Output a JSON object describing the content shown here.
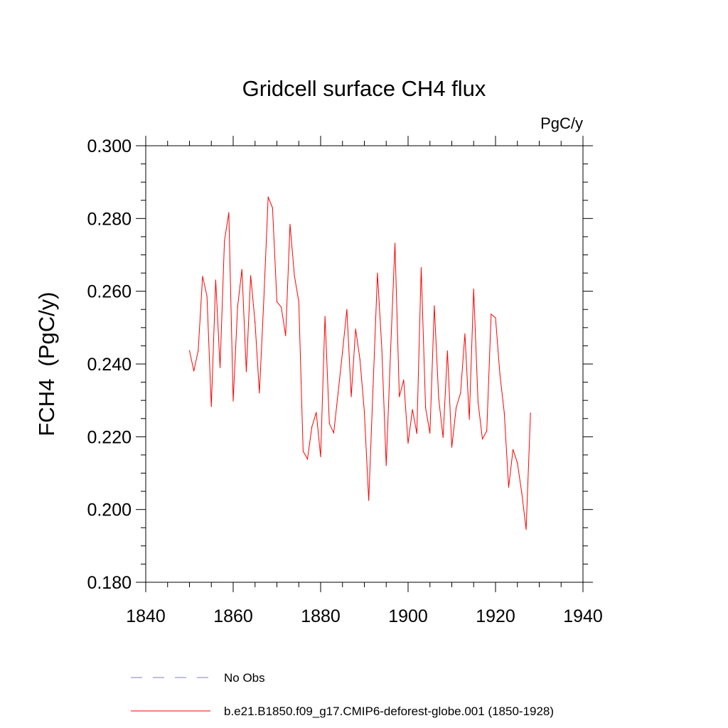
{
  "chart_data": {
    "type": "line",
    "title": "Gridcell surface CH4 flux",
    "units_label": "PgC/y",
    "xlabel": "",
    "ylabel": "FCH4  (PgC/y)",
    "xlim": [
      1840,
      1940
    ],
    "ylim": [
      0.18,
      0.3
    ],
    "xticks": [
      1840,
      1860,
      1880,
      1900,
      1920,
      1940
    ],
    "xtick_labels": [
      "1840",
      "1860",
      "1880",
      "1900",
      "1920",
      "1940"
    ],
    "yticks": [
      0.18,
      0.2,
      0.22,
      0.24,
      0.26,
      0.28,
      0.3
    ],
    "ytick_labels": [
      "0.180",
      "0.200",
      "0.220",
      "0.240",
      "0.260",
      "0.280",
      "0.300"
    ],
    "grid": false,
    "series": [
      {
        "name": "b.e21.B1850.f09_g17.CMIP6-deforest-globe.001 (1850-1928)",
        "color": "#ff0000",
        "style": "solid",
        "x": [
          1850,
          1851,
          1852,
          1853,
          1854,
          1855,
          1856,
          1857,
          1858,
          1859,
          1860,
          1861,
          1862,
          1863,
          1864,
          1865,
          1866,
          1867,
          1868,
          1869,
          1870,
          1871,
          1872,
          1873,
          1874,
          1875,
          1876,
          1877,
          1878,
          1879,
          1880,
          1881,
          1882,
          1883,
          1884,
          1885,
          1886,
          1887,
          1888,
          1889,
          1890,
          1891,
          1892,
          1893,
          1894,
          1895,
          1896,
          1897,
          1898,
          1899,
          1900,
          1901,
          1902,
          1903,
          1904,
          1905,
          1906,
          1907,
          1908,
          1909,
          1910,
          1911,
          1912,
          1913,
          1914,
          1915,
          1916,
          1917,
          1918,
          1919,
          1920,
          1921,
          1922,
          1923,
          1924,
          1925,
          1926,
          1927,
          1928
        ],
        "y": [
          0.2437,
          0.2381,
          0.2437,
          0.2641,
          0.2587,
          0.2283,
          0.2631,
          0.239,
          0.2738,
          0.2816,
          0.2298,
          0.2556,
          0.266,
          0.2379,
          0.2643,
          0.2514,
          0.232,
          0.2576,
          0.2859,
          0.2829,
          0.2571,
          0.2556,
          0.2478,
          0.2784,
          0.2643,
          0.2572,
          0.216,
          0.2139,
          0.2227,
          0.2267,
          0.2145,
          0.2531,
          0.2236,
          0.2211,
          0.2321,
          0.2433,
          0.255,
          0.231,
          0.2496,
          0.2412,
          0.2268,
          0.2025,
          0.2339,
          0.265,
          0.244,
          0.2121,
          0.2436,
          0.2732,
          0.231,
          0.2356,
          0.2182,
          0.2275,
          0.2209,
          0.2665,
          0.228,
          0.221,
          0.256,
          0.2306,
          0.2198,
          0.2436,
          0.2171,
          0.228,
          0.232,
          0.2483,
          0.2248,
          0.2606,
          0.2296,
          0.2194,
          0.2216,
          0.2537,
          0.2527,
          0.2372,
          0.2266,
          0.2061,
          0.2165,
          0.2128,
          0.2046,
          0.1945,
          0.2265
        ]
      },
      {
        "name": "No Obs",
        "color": "#7f7fc8",
        "style": "dashed",
        "x": [],
        "y": []
      }
    ],
    "legend_position": "bottom-left"
  }
}
